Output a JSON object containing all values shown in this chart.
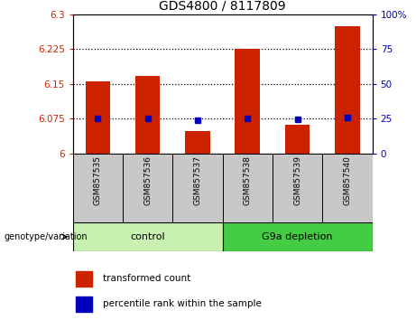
{
  "title": "GDS4800 / 8117809",
  "samples": [
    "GSM857535",
    "GSM857536",
    "GSM857537",
    "GSM857538",
    "GSM857539",
    "GSM857540"
  ],
  "red_values": [
    6.155,
    6.168,
    6.048,
    6.225,
    6.063,
    6.275
  ],
  "blue_values": [
    6.075,
    6.075,
    6.071,
    6.075,
    6.073,
    6.077
  ],
  "ymin": 6.0,
  "ymax": 6.3,
  "yticks_left": [
    6.0,
    6.075,
    6.15,
    6.225,
    6.3
  ],
  "ytick_labels_left": [
    "6",
    "6.075",
    "6.15",
    "6.225",
    "6.3"
  ],
  "yticks_right_pct": [
    0,
    25,
    50,
    75,
    100
  ],
  "grid_lines": [
    6.075,
    6.15,
    6.225
  ],
  "bar_color": "#cc2200",
  "dot_color": "#0000bb",
  "bar_width": 0.5,
  "group_label_left": "genotype/variation",
  "group_labels": [
    "control",
    "G9a depletion"
  ],
  "group_ranges": [
    [
      0,
      2
    ],
    [
      3,
      5
    ]
  ],
  "group_color_light": "#c8f0b0",
  "group_color_dark": "#44cc44",
  "legend_red": "transformed count",
  "legend_blue": "percentile rank within the sample",
  "title_fontsize": 10,
  "tick_fontsize": 7.5
}
